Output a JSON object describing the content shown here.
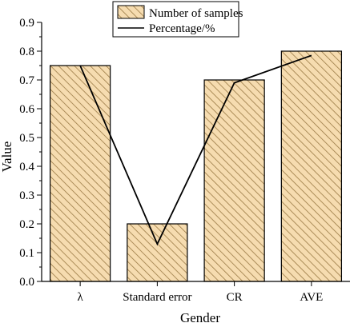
{
  "chart_data": {
    "type": "bar",
    "categories": [
      "λ",
      "Standard error",
      "CR",
      "AVE"
    ],
    "series": [
      {
        "name": "Number of samples",
        "type": "bar",
        "values": [
          0.75,
          0.2,
          0.7,
          0.8
        ]
      },
      {
        "name": "Percentage/%",
        "type": "line",
        "values": [
          0.75,
          0.13,
          0.69,
          0.785
        ]
      }
    ],
    "xlabel": "Gender",
    "ylabel": "Value",
    "ylim": [
      0,
      0.9
    ],
    "yticks": [
      "0.0",
      "0.1",
      "0.2",
      "0.3",
      "0.4",
      "0.5",
      "0.6",
      "0.7",
      "0.8",
      "0.9"
    ],
    "grid": false,
    "legend_position": "top",
    "colors": {
      "bar_fill": "#f6dcb0",
      "hatch": "#9a7a45",
      "edge": "#000000",
      "line": "#000000"
    }
  }
}
